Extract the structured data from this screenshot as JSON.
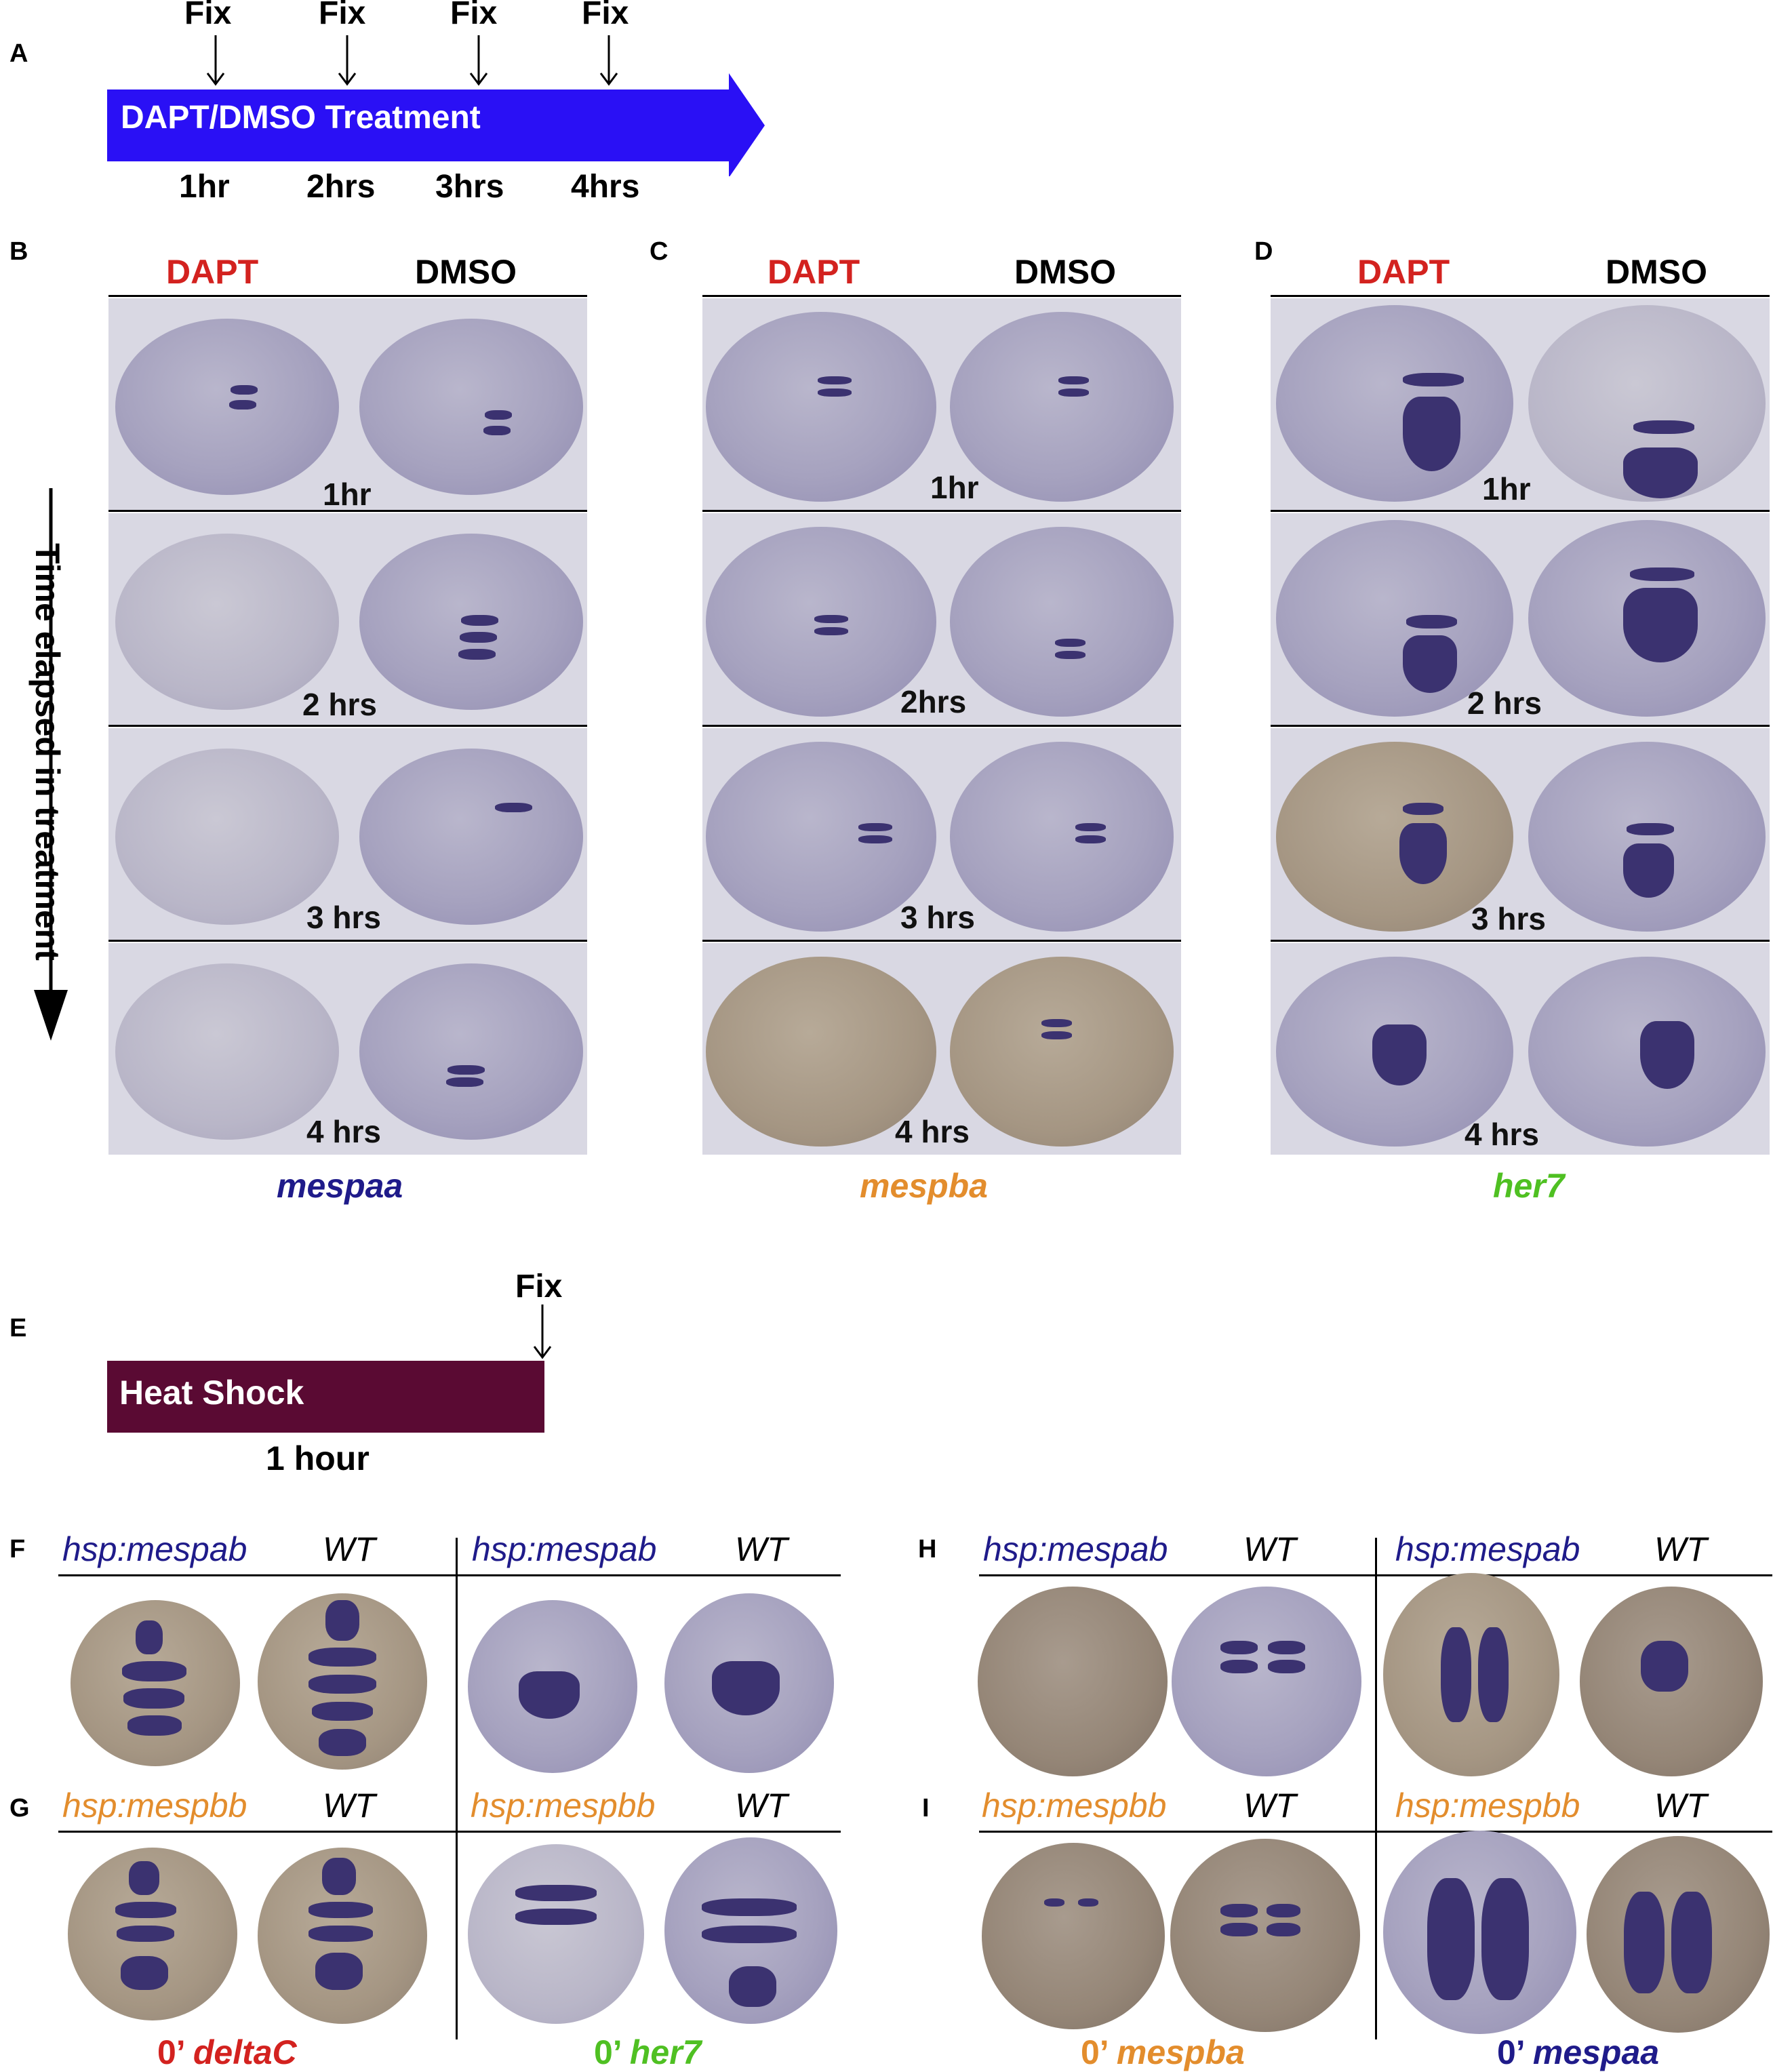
{
  "panel_letters": {
    "A": "A",
    "B": "B",
    "C": "C",
    "D": "D",
    "E": "E",
    "F": "F",
    "G": "G",
    "H": "H",
    "I": "I"
  },
  "panelA": {
    "fix_labels": [
      "Fix",
      "Fix",
      "Fix",
      "Fix"
    ],
    "bar_text": "DAPT/DMSO Treatment",
    "bar_color": "#2a10f5",
    "times": [
      "1hr",
      "2hrs",
      "3hrs",
      "4hrs"
    ]
  },
  "side_axis": "Time elapsed in treatment",
  "headers": {
    "dapt": "DAPT",
    "dmso": "DMSO",
    "dapt_color": "#d3221f"
  },
  "panelB": {
    "times": [
      "1hr",
      "2 hrs",
      "3 hrs",
      "4 hrs"
    ],
    "gene": "mespaa",
    "gene_color": "#1f1b8a"
  },
  "panelC": {
    "times": [
      "1hr",
      "2hrs",
      "3 hrs",
      "4 hrs"
    ],
    "gene": "mespba",
    "gene_color": "#e38d2d"
  },
  "panelD": {
    "times": [
      "1hr",
      "2 hrs",
      "3 hrs",
      "4 hrs"
    ],
    "gene": "her7",
    "gene_color": "#4fc022"
  },
  "panelE": {
    "fix": "Fix",
    "bar_text": "Heat Shock",
    "bar_color": "#5a0a33",
    "duration": "1 hour"
  },
  "lower": {
    "hsp_ab": "hsp:mespab",
    "hsp_bb": "hsp:mespbb",
    "wt": "WT",
    "hsp_ab_color": "#1f1b8a",
    "hsp_bb_color": "#e38d2d",
    "bottom": [
      {
        "prefix": "0’",
        "gene": "deltaC",
        "color": "#d3221f"
      },
      {
        "prefix": "0’",
        "gene": "her7",
        "color": "#4fc022"
      },
      {
        "prefix": "0’",
        "gene": "mespba",
        "color": "#e38d2d"
      },
      {
        "prefix": "0’",
        "gene": "mespaa",
        "color": "#1f1b8a"
      }
    ]
  }
}
